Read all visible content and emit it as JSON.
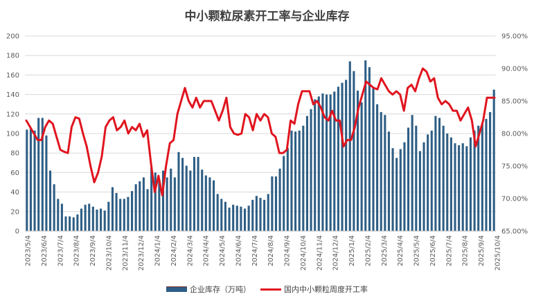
{
  "chart_data": {
    "type": "bar",
    "title": "中小颗粒尿素开工率与企业库存",
    "left_axis": {
      "ylim": [
        0,
        200
      ],
      "ticks": [
        0,
        20,
        40,
        60,
        80,
        100,
        120,
        140,
        160,
        180,
        200
      ]
    },
    "right_axis": {
      "ylim": [
        65,
        95
      ],
      "ticks": [
        "65.00%",
        "70.00%",
        "75.00%",
        "80.00%",
        "85.00%",
        "90.00%",
        "95.00%"
      ]
    },
    "x_tick_labels": [
      "2023/5/4",
      "2023/6/4",
      "2023/7/4",
      "2023/8/4",
      "2023/9/4",
      "2023/10/4",
      "2023/11/4",
      "2023/12/4",
      "2024/1/4",
      "2024/2/4",
      "2024/3/4",
      "2024/4/4",
      "2024/5/4",
      "2024/6/4",
      "2024/7/4",
      "2024/8/4",
      "2024/9/4",
      "2024/10/4",
      "2024/11/4",
      "2024/12/4",
      "2025/1/4",
      "2025/2/4",
      "2025/3/4",
      "2025/4/4",
      "2025/5/4",
      "2025/6/4",
      "2025/7/4",
      "2025/8/4",
      "2025/9/4",
      "2025/10/4"
    ],
    "series": [
      {
        "name": "企业库存（万吨）",
        "type": "bar",
        "axis": "left",
        "color": "#2e5e85",
        "values": [
          104,
          106,
          103,
          116,
          116,
          98,
          62,
          48,
          33,
          28,
          15,
          15,
          14,
          17,
          23,
          27,
          28,
          25,
          22,
          23,
          21,
          30,
          45,
          39,
          33,
          33,
          35,
          41,
          48,
          51,
          55,
          43,
          65,
          60,
          52,
          62,
          55,
          64,
          55,
          81,
          75,
          67,
          62,
          76,
          76,
          63,
          57,
          55,
          52,
          38,
          33,
          30,
          24,
          27,
          26,
          25,
          23,
          26,
          32,
          36,
          34,
          32,
          38,
          56,
          56,
          64,
          77,
          85,
          103,
          102,
          103,
          108,
          118,
          125,
          135,
          138,
          141,
          140,
          140,
          143,
          148,
          152,
          155,
          174,
          164,
          144,
          132,
          175,
          168,
          148,
          130,
          122,
          119,
          102,
          85,
          75,
          84,
          91,
          106,
          119,
          108,
          82,
          91,
          99,
          103,
          118,
          116,
          108,
          100,
          96,
          90,
          88,
          90,
          87,
          96,
          103,
          108,
          110,
          115,
          122,
          145
        ]
      },
      {
        "name": "国内中小颗粒周度开工率",
        "type": "line",
        "axis": "right",
        "color": "#e0141e",
        "values": [
          82.0,
          81.0,
          80.0,
          79.0,
          79.0,
          81.0,
          82.0,
          81.5,
          79.5,
          77.5,
          77.2,
          77.0,
          81.0,
          82.5,
          82.3,
          80.0,
          78.0,
          75.0,
          72.5,
          74.0,
          76.5,
          81.0,
          82.0,
          82.5,
          80.5,
          81.0,
          82.0,
          80.0,
          81.0,
          80.5,
          81.5,
          79.5,
          80.5,
          75.5,
          71.0,
          73.5,
          70.5,
          75.0,
          78.5,
          79.0,
          83.0,
          85.0,
          87.0,
          85.0,
          84.0,
          85.5,
          84.0,
          85.0,
          85.0,
          85.0,
          83.5,
          82.0,
          83.5,
          85.5,
          81.0,
          80.0,
          79.8,
          80.0,
          83.0,
          82.5,
          80.5,
          83.0,
          82.0,
          83.0,
          82.5,
          80.0,
          79.5,
          77.0,
          77.0,
          77.5,
          82.0,
          81.5,
          84.5,
          86.5,
          86.5,
          86.5,
          84.5,
          85.0,
          84.0,
          82.5,
          82.0,
          83.5,
          82.0,
          82.0,
          78.0,
          79.0,
          79.0,
          81.0,
          84.0,
          86.0,
          88.0,
          87.5,
          87.0,
          86.8,
          88.5,
          87.5,
          86.5,
          86.0,
          86.5,
          86.0,
          83.5,
          87.0,
          87.5,
          86.5,
          88.5,
          90.0,
          89.5,
          88.0,
          88.5,
          85.5,
          84.5,
          85.0,
          84.5,
          83.5,
          83.5,
          82.0,
          83.0,
          84.0,
          82.0,
          78.0,
          80.0,
          82.0,
          85.5,
          85.5,
          85.5
        ]
      }
    ],
    "legend": [
      "企业库存（万吨）",
      "国内中小颗粒周度开工率"
    ],
    "legend_position": "bottom"
  }
}
